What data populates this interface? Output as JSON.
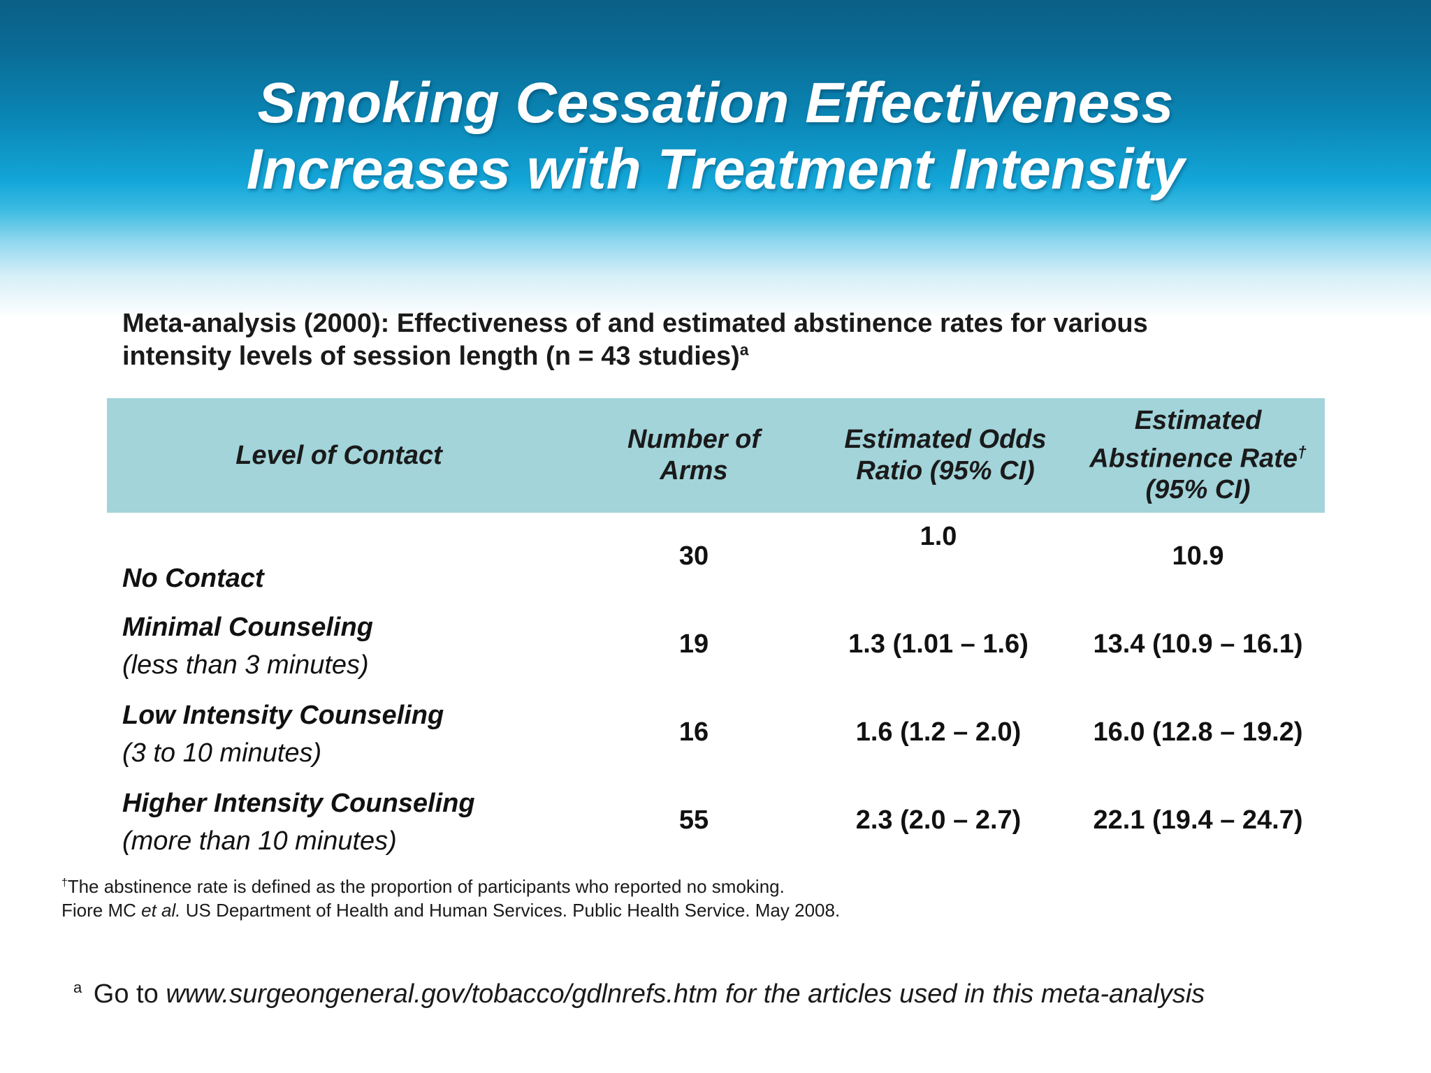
{
  "slide": {
    "title_line1": "Smoking Cessation Effectiveness",
    "title_line2": "Increases with Treatment Intensity",
    "subtitle_line1": "Meta-analysis (2000): Effectiveness of and estimated abstinence rates for various",
    "subtitle_line2": "intensity levels of session length (n = 43 studies)",
    "subtitle_sup": "a"
  },
  "table": {
    "headers": {
      "level": "Level of Contact",
      "arms_line1": "Number of",
      "arms_line2": "Arms",
      "odds_line1": "Estimated Odds",
      "odds_line2": "Ratio (95% CI)",
      "rate_line1": "Estimated",
      "rate_line2": "Abstinence Rate",
      "rate_dagger": "†",
      "rate_line3": "(95% CI)"
    },
    "rows": [
      {
        "level": "No Contact",
        "sublevel": "",
        "arms": "30",
        "odds": "1.0",
        "rate": "10.9"
      },
      {
        "level": "Minimal Counseling",
        "sublevel": "(less than 3 minutes)",
        "arms": "19",
        "odds": "1.3 (1.01 – 1.6)",
        "rate": "13.4 (10.9 – 16.1)"
      },
      {
        "level": "Low Intensity Counseling",
        "sublevel": "(3 to 10 minutes)",
        "arms": "16",
        "odds": "1.6 (1.2 – 2.0)",
        "rate": "16.0 (12.8 – 19.2)"
      },
      {
        "level": "Higher Intensity Counseling",
        "sublevel": "(more than 10 minutes)",
        "arms": "55",
        "odds": "2.3 (2.0 – 2.7)",
        "rate": "22.1 (19.4 – 24.7)"
      }
    ]
  },
  "footnotes": {
    "dagger": "†",
    "definition": "The abstinence rate is defined as the proportion of participants who reported no smoking.",
    "citation_author": "Fiore MC ",
    "citation_etal": "et al.",
    "citation_rest": " US Department of Health and Human Services. Public Health Service.  May 2008."
  },
  "reference": {
    "sup": "a",
    "prefix": " Go to ",
    "url_text": "www.surgeongeneral.gov/tobacco/gdlnrefs.htm for the articles used in this meta-analysis"
  },
  "colors": {
    "header_band_top": "#0a5f86",
    "header_band_mid": "#13a6d8",
    "table_header_bg": "#a2d4da",
    "text": "#1a1a1a",
    "title_text": "#ffffff"
  }
}
